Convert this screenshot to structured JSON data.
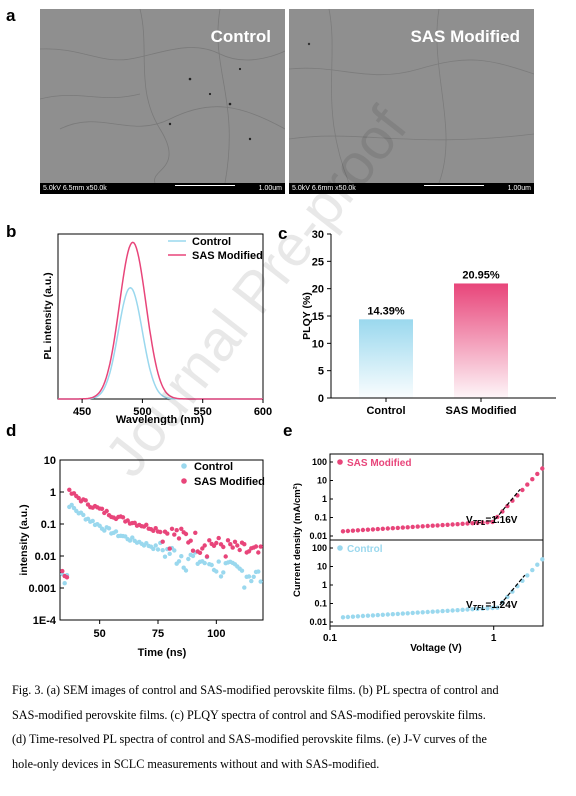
{
  "panels": {
    "a": "a",
    "b": "b",
    "c": "c",
    "d": "d",
    "e": "e"
  },
  "sem": {
    "left": {
      "title": "Control",
      "info": "5.0kV 6.5mm x50.0k",
      "scale": "1.00um"
    },
    "right": {
      "title": "SAS Modified",
      "info": "5.0kV 6.6mm x50.0k",
      "scale": "1.00um"
    }
  },
  "colors": {
    "control": "#9ad8ee",
    "sas": "#e8457a"
  },
  "watermark": "Journal Pre-proof",
  "caption": [
    "Fig. 3. (a) SEM images of control and SAS-modified perovskite films. (b) PL spectra of control and",
    "SAS-modified perovskite films. (c) PLQY spectra of control and SAS-modified perovskite films.",
    "(d) Time-resolved PL spectra of control and SAS-modified perovskite films. (e) J-V curves of the",
    "hole-only devices in SCLC measurements without and with SAS-modified."
  ],
  "chart_data": [
    {
      "id": "b",
      "type": "line",
      "xlabel": "Wavelength (nm)",
      "ylabel": "PL intensity (a.u.)",
      "xlim": [
        430,
        600
      ],
      "xticks": [
        "450",
        "500",
        "550",
        "600"
      ],
      "series": [
        {
          "name": "Control",
          "peak_x": 490,
          "peak_rel": 0.71,
          "width": 10
        },
        {
          "name": "SAS Modified",
          "peak_x": 492,
          "peak_rel": 1.0,
          "width": 11
        }
      ]
    },
    {
      "id": "c",
      "type": "bar",
      "ylabel": "PLQY (%)",
      "ylim": [
        0,
        30
      ],
      "yticks": [
        "0",
        "5",
        "10",
        "15",
        "20",
        "25",
        "30"
      ],
      "categories": [
        "Control",
        "SAS Modified"
      ],
      "values": [
        14.39,
        20.95
      ],
      "data_labels": [
        "14.39%",
        "20.95%"
      ]
    },
    {
      "id": "d",
      "type": "scatter",
      "xlabel": "Time (ns)",
      "ylabel": "intensity (a.u.)",
      "xlim": [
        33,
        120
      ],
      "ylog": true,
      "xticks": [
        "50",
        "75",
        "100"
      ],
      "yticks": [
        "10",
        "1",
        "0.1",
        "0.01",
        "0.001",
        "1E-4"
      ],
      "series": [
        {
          "name": "Control",
          "peak": 0.4,
          "tau": 5.5,
          "floor": 0.00065
        },
        {
          "name": "SAS Modified",
          "peak": 1.0,
          "tau": 7.0,
          "floor": 0.0011
        }
      ]
    },
    {
      "id": "e",
      "type": "scatter",
      "xlabel": "Voltage (V)",
      "ylabel": "Current density (mA/cm²)",
      "xlog": true,
      "ylog": true,
      "xlim": [
        0.1,
        2
      ],
      "xticks": [
        "0.1",
        "1"
      ],
      "yticks": [
        "100",
        "10",
        "1",
        "0.1",
        "0.01"
      ],
      "subplots": [
        {
          "name": "SAS Modified",
          "vtfl_label": "V",
          "vtfl_sub": "TFL",
          "vtfl_value": "=1.16V",
          "vtfl": 1.16
        },
        {
          "name": "Control",
          "vtfl_label": "V",
          "vtfl_sub": "TFL",
          "vtfl_value": "=1.24V",
          "vtfl": 1.24
        }
      ]
    }
  ]
}
